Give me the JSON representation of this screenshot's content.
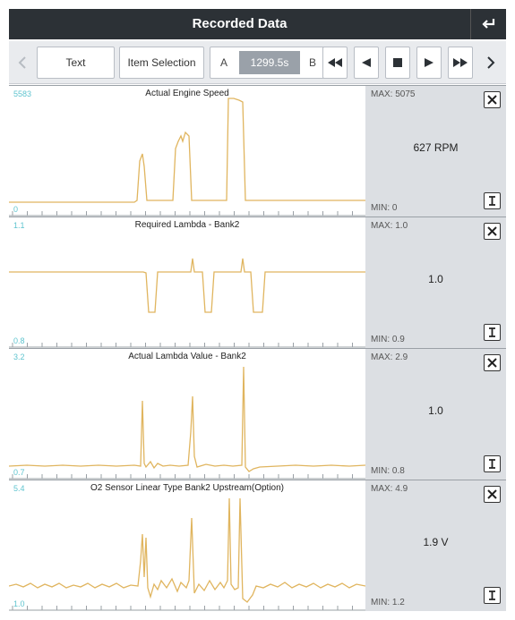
{
  "header": {
    "title": "Recorded Data"
  },
  "toolbar": {
    "text_label": "Text",
    "item_selection_label": "Item Selection",
    "a_label": "A",
    "b_label": "B",
    "time": "1299.5s"
  },
  "colors": {
    "trace": "#e0b55f",
    "axis_label": "#5fc4cf",
    "title_bar": "#2c3136"
  },
  "panels": [
    {
      "title": "Actual Engine Speed",
      "axis_max": "5583",
      "axis_min": "0",
      "max": "MAX: 5075",
      "min": "MIN: 0",
      "value": "627 RPM"
    },
    {
      "title": "Required Lambda - Bank2",
      "axis_max": "1.1",
      "axis_min": "0.8",
      "max": "MAX: 1.0",
      "min": "MIN: 0.9",
      "value": "1.0"
    },
    {
      "title": "Actual Lambda Value - Bank2",
      "axis_max": "3.2",
      "axis_min": "0.7",
      "max": "MAX: 2.9",
      "min": "MIN: 0.8",
      "value": "1.0"
    },
    {
      "title": "O2 Sensor Linear Type Bank2 Upstream(Option)",
      "axis_max": "5.4",
      "axis_min": "1.0",
      "max": "MAX: 4.9",
      "min": "MIN: 1.2",
      "value": "1.9 V"
    }
  ],
  "icons": {
    "back": "return-arrow-icon",
    "close": "close-icon",
    "cursor": "cursor-icon"
  }
}
